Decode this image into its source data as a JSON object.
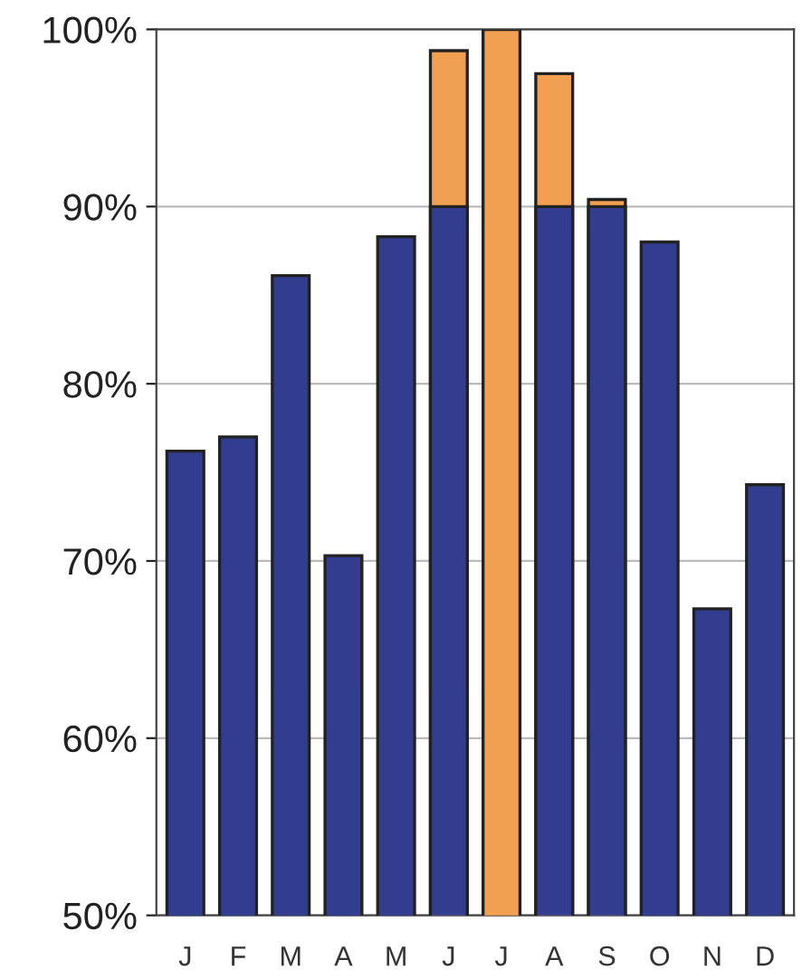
{
  "chart_data": {
    "type": "bar",
    "categories": [
      "J",
      "F",
      "M",
      "A",
      "M",
      "J",
      "J",
      "A",
      "S",
      "O",
      "N",
      "D"
    ],
    "series": [
      {
        "color": "#f0a050",
        "values": [
          null,
          null,
          null,
          null,
          null,
          98.8,
          100,
          97.5,
          90.4,
          null,
          null,
          null
        ]
      },
      {
        "color": "#333d8f",
        "values": [
          76.2,
          77.0,
          86.1,
          70.3,
          88.3,
          90,
          null,
          90,
          90,
          88.0,
          67.3,
          74.3
        ]
      }
    ],
    "ylim": [
      50,
      100
    ],
    "yticks": [
      {
        "value": 50,
        "label": "50%"
      },
      {
        "value": 60,
        "label": "60%"
      },
      {
        "value": 70,
        "label": "70%"
      },
      {
        "value": 80,
        "label": "80%"
      },
      {
        "value": 90,
        "label": "90%"
      },
      {
        "value": 100,
        "label": "100%"
      }
    ],
    "grid": "y",
    "legend": false
  }
}
